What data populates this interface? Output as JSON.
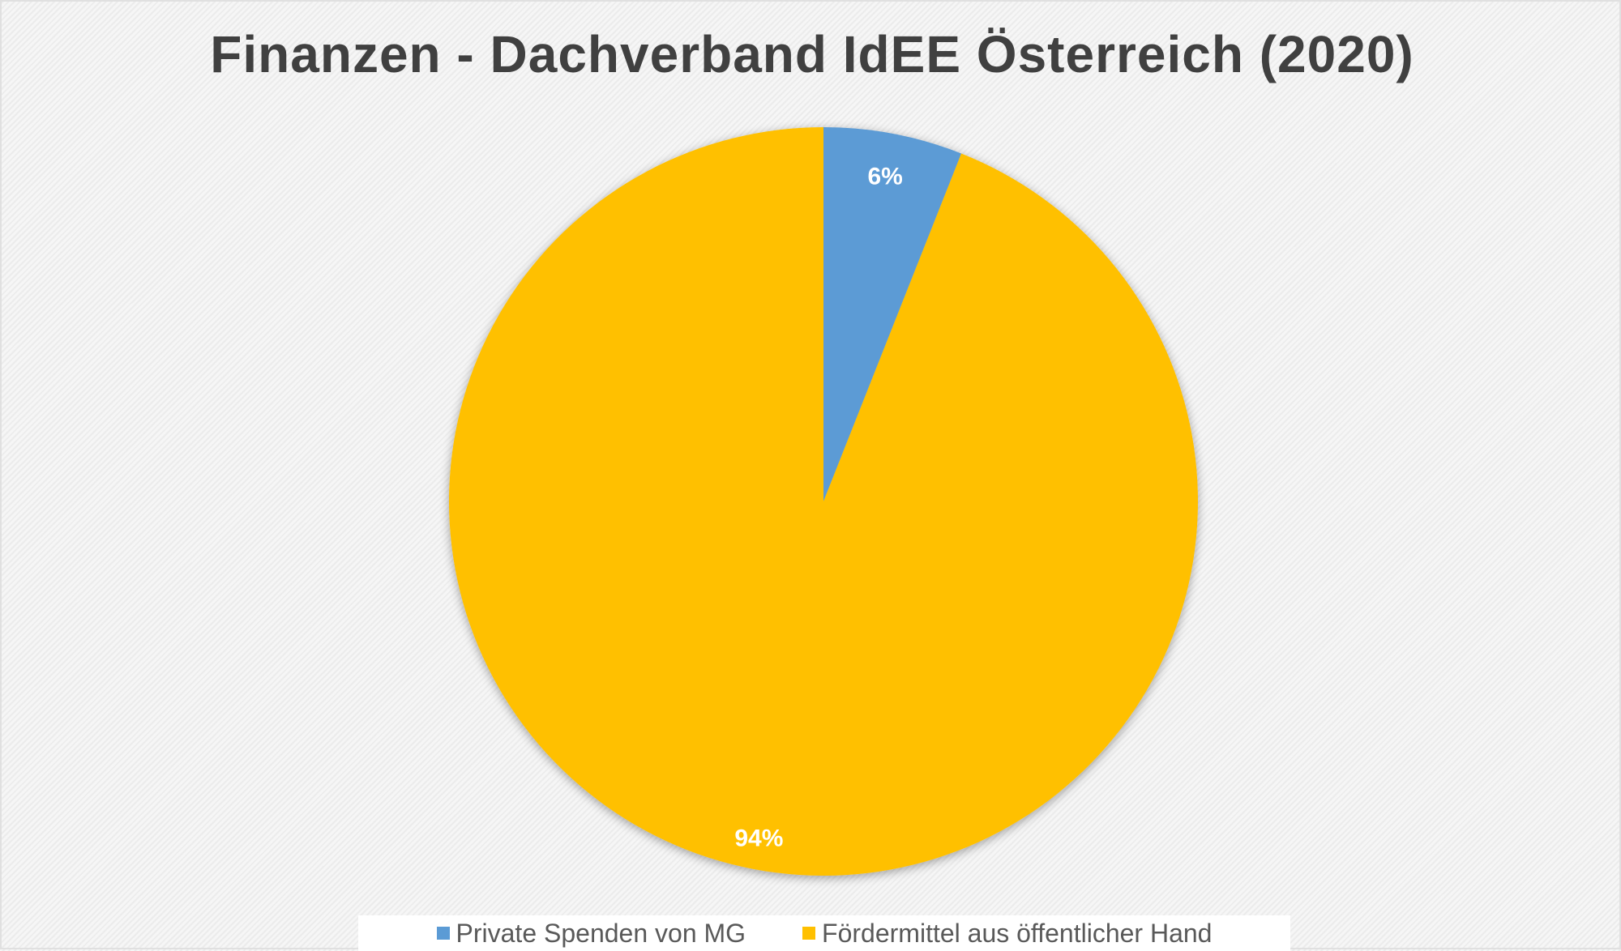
{
  "chart_data": {
    "type": "pie",
    "title": "Finanzen - Dachverband IdEE Österreich (2020)",
    "categories": [
      "Private Spenden von MG",
      "Fördermittel aus öffentlicher Hand"
    ],
    "values": [
      6,
      94
    ],
    "data_labels": [
      "6%",
      "94%"
    ],
    "colors": [
      "#5b9bd5",
      "#ffc000"
    ],
    "start_angle": "top",
    "direction": "clockwise",
    "legend_position": "bottom"
  }
}
